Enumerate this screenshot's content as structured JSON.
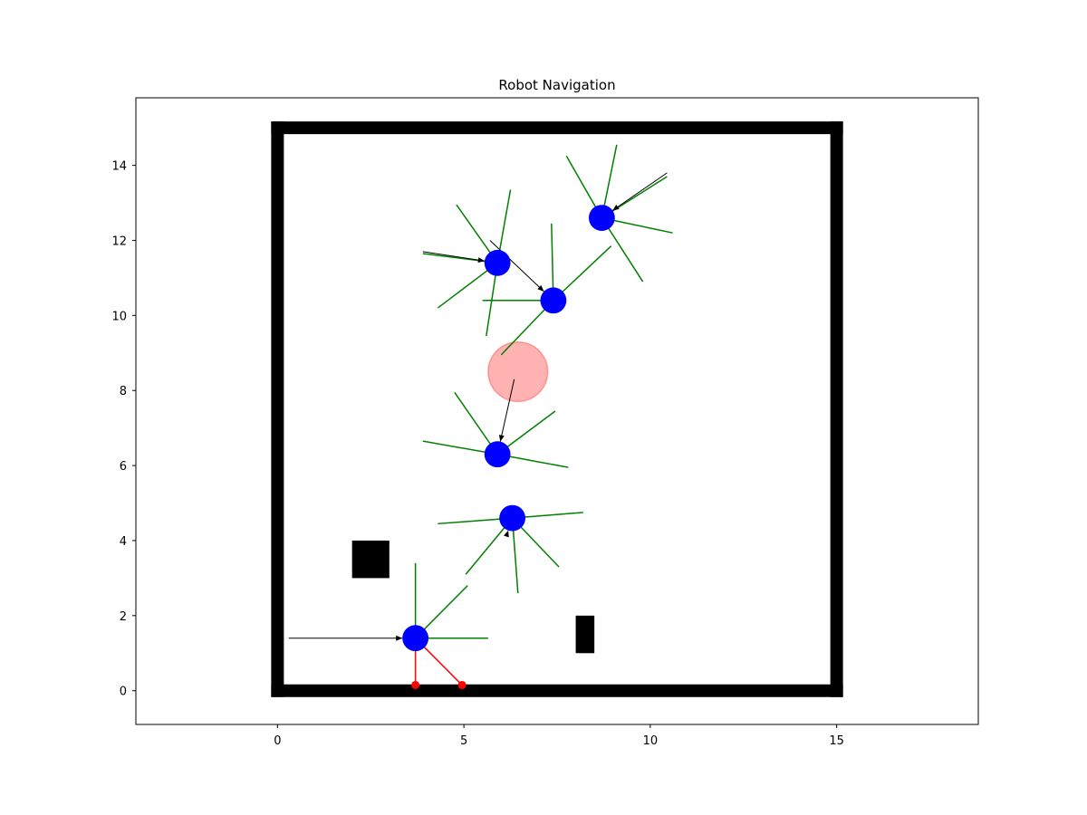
{
  "chart_data": {
    "type": "scatter",
    "title": "Robot Navigation",
    "xlabel": "",
    "ylabel": "",
    "xlim": [
      -3.8,
      18.8
    ],
    "ylim": [
      -0.9,
      15.8
    ],
    "xticks": [
      0,
      5,
      10,
      15
    ],
    "yticks": [
      0,
      2,
      4,
      6,
      8,
      10,
      12,
      14
    ],
    "grid": false,
    "walls": [
      {
        "x0": 0,
        "y0": 0,
        "x1": 15,
        "y1": 0
      },
      {
        "x0": 0,
        "y0": 15,
        "x1": 15,
        "y1": 15
      },
      {
        "x0": 0,
        "y0": 0,
        "x1": 0,
        "y1": 15
      },
      {
        "x0": 15,
        "y0": 0,
        "x1": 15,
        "y1": 15
      }
    ],
    "obstacles": [
      {
        "x": 2.0,
        "y": 3.0,
        "w": 1.0,
        "h": 1.0
      },
      {
        "x": 8.0,
        "y": 1.0,
        "w": 0.5,
        "h": 1.0
      }
    ],
    "goal": {
      "x": 6.45,
      "y": 8.5,
      "r": 0.8,
      "color": "#ff0000",
      "alpha": 0.3
    },
    "robots": [
      {
        "x": 3.7,
        "y": 1.4,
        "r": 0.35,
        "heading": [
          0.3,
          1.4
        ],
        "sensors": [
          {
            "x": 3.7,
            "y": 0.15,
            "hit": true
          },
          {
            "x": 4.95,
            "y": 0.15,
            "hit": true
          },
          {
            "x": 5.65,
            "y": 1.4,
            "hit": false
          },
          {
            "x": 5.1,
            "y": 2.8,
            "hit": false
          },
          {
            "x": 3.7,
            "y": 3.4,
            "hit": false
          }
        ]
      },
      {
        "x": 6.3,
        "y": 4.6,
        "r": 0.35,
        "heading": [
          6.2,
          4.3
        ],
        "sensors": [
          {
            "x": 8.2,
            "y": 4.75,
            "hit": false
          },
          {
            "x": 7.55,
            "y": 3.3,
            "hit": false
          },
          {
            "x": 6.45,
            "y": 2.6,
            "hit": false
          },
          {
            "x": 5.05,
            "y": 3.1,
            "hit": false
          },
          {
            "x": 4.3,
            "y": 4.45,
            "hit": false
          }
        ]
      },
      {
        "x": 5.9,
        "y": 6.3,
        "r": 0.35,
        "heading": [
          6.35,
          8.3
        ],
        "sensors": [
          {
            "x": 7.8,
            "y": 5.95,
            "hit": false
          },
          {
            "x": 7.45,
            "y": 7.45,
            "hit": false
          },
          {
            "x": 4.75,
            "y": 7.95,
            "hit": false
          },
          {
            "x": 3.9,
            "y": 6.65,
            "hit": false
          }
        ]
      },
      {
        "x": 7.4,
        "y": 10.4,
        "r": 0.35,
        "heading": [
          5.7,
          12.0
        ],
        "sensors": [
          {
            "x": 8.95,
            "y": 11.85,
            "hit": false
          },
          {
            "x": 7.35,
            "y": 12.45,
            "hit": false
          },
          {
            "x": 5.5,
            "y": 10.4,
            "hit": false
          },
          {
            "x": 6.0,
            "y": 8.95,
            "hit": false
          }
        ]
      },
      {
        "x": 5.9,
        "y": 11.4,
        "r": 0.35,
        "heading": [
          3.9,
          11.7
        ],
        "sensors": [
          {
            "x": 6.25,
            "y": 13.35,
            "hit": false
          },
          {
            "x": 4.8,
            "y": 12.95,
            "hit": false
          },
          {
            "x": 3.9,
            "y": 11.65,
            "hit": false
          },
          {
            "x": 4.3,
            "y": 10.2,
            "hit": false
          },
          {
            "x": 5.6,
            "y": 9.45,
            "hit": false
          }
        ]
      },
      {
        "x": 8.7,
        "y": 12.6,
        "r": 0.35,
        "heading": [
          10.45,
          13.8
        ],
        "sensors": [
          {
            "x": 9.1,
            "y": 14.55,
            "hit": false
          },
          {
            "x": 7.75,
            "y": 14.25,
            "hit": false
          },
          {
            "x": 10.45,
            "y": 13.7,
            "hit": false
          },
          {
            "x": 10.6,
            "y": 12.2,
            "hit": false
          },
          {
            "x": 9.8,
            "y": 10.9,
            "hit": false
          }
        ]
      }
    ],
    "colors": {
      "robot": "#0000ff",
      "sensor": "#008000",
      "sensor_hit": "#ff0000",
      "wall": "#000000",
      "arrow": "#000000"
    }
  }
}
